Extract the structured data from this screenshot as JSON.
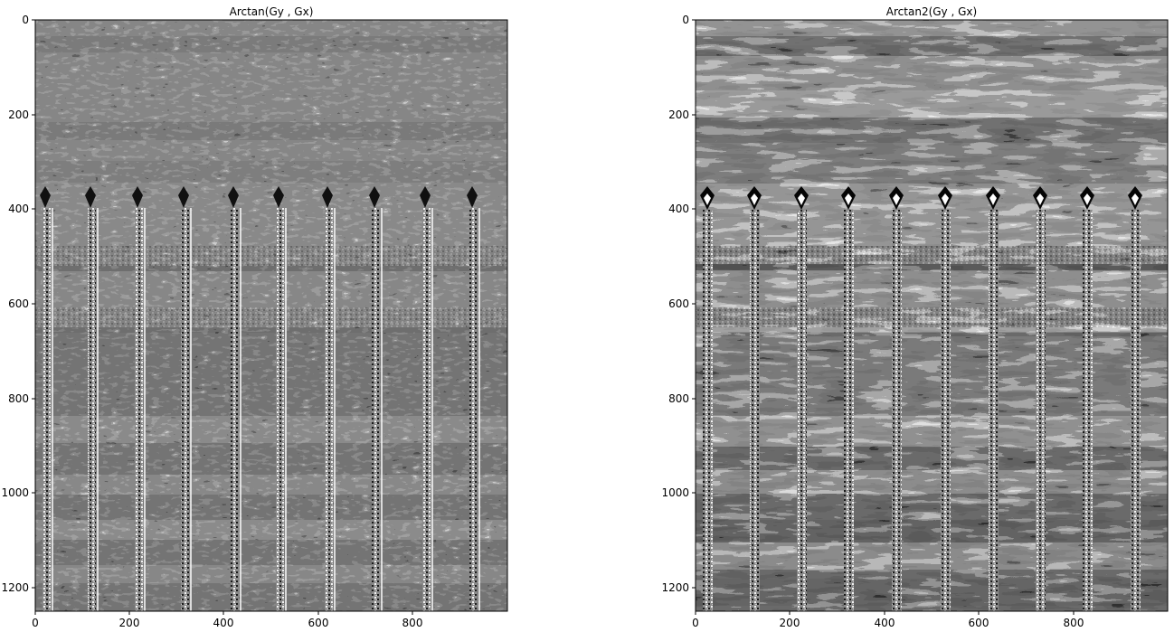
{
  "figure": {
    "panels": [
      {
        "title": "Arctan(Gy , Gx)",
        "image_style": "arctan",
        "xticks": [
          "0",
          "200",
          "400",
          "600",
          "800"
        ],
        "yticks": [
          "0",
          "200",
          "400",
          "600",
          "800",
          "1000",
          "1200"
        ]
      },
      {
        "title": "Arctan2(Gy , Gx)",
        "image_style": "arctan2",
        "xticks": [
          "0",
          "200",
          "400",
          "600",
          "800"
        ],
        "yticks": [
          "0",
          "200",
          "400",
          "600",
          "800",
          "1000",
          "1200"
        ]
      }
    ]
  }
}
